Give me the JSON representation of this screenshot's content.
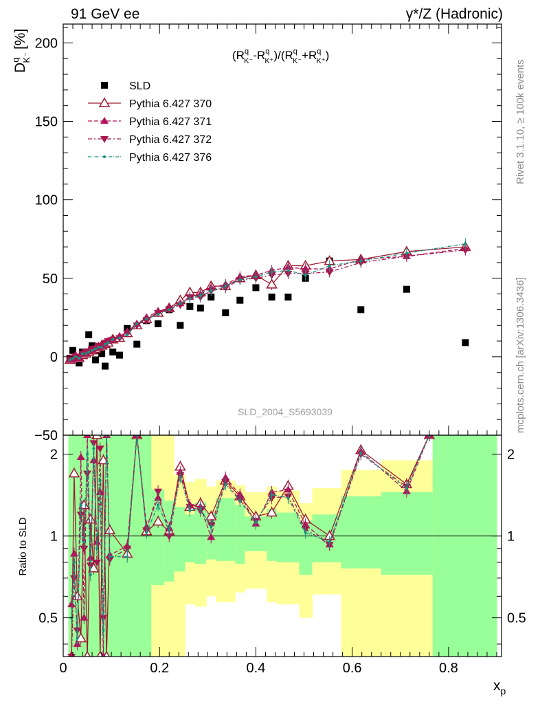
{
  "header": {
    "left": "91 GeV ee",
    "right": "γ*/Z (Hadronic)"
  },
  "side_labels": {
    "rivet": "Rivet 3.1.10, ≥ 100k events",
    "mcplots": "mcplots.cern.ch [arXiv:1306.3436]"
  },
  "watermark": "SLD_2004_S5693039",
  "colors": {
    "data": "#000000",
    "p370": "#9b1b30",
    "p371": "#b0155e",
    "p372": "#a8184f",
    "p376": "#17937f",
    "band_green": "#99ff99",
    "band_yellow": "#ffff99"
  },
  "chart_data": [
    {
      "type": "scatter",
      "panel": "main",
      "ylabel_main": "D",
      "ylabel_sup": "q",
      "ylabel_sub": "K⁻",
      "ylabel_unit": "[%]",
      "formula": "(R^q_{K-}-R^q_{K+})/(R^q_{K-}+R^q_{K+})",
      "formula_parts": {
        "R": "R",
        "q": "q",
        "km": "K⁻",
        "kp": "K⁺",
        "open": "(",
        "minus": "-",
        "mid": ")/(",
        "plus": "+",
        "close": ")"
      },
      "xlim": [
        0,
        0.91
      ],
      "ylim": [
        -50,
        212
      ],
      "yticks": [
        -50,
        0,
        50,
        100,
        150,
        200
      ],
      "ytick_labels": [
        "−50",
        "0",
        "50",
        "100",
        "150",
        "200"
      ],
      "legend_position": "top-left",
      "series": [
        {
          "name": "SLD",
          "key": "sld",
          "style": "data",
          "x": [
            0.014,
            0.02,
            0.026,
            0.033,
            0.04,
            0.047,
            0.053,
            0.06,
            0.067,
            0.073,
            0.08,
            0.087,
            0.093,
            0.103,
            0.117,
            0.133,
            0.153,
            0.173,
            0.197,
            0.22,
            0.243,
            0.263,
            0.285,
            0.307,
            0.337,
            0.367,
            0.4,
            0.433,
            0.467,
            0.503,
            0.553,
            0.618,
            0.713,
            0.835
          ],
          "y": [
            -1,
            4,
            -1,
            -4,
            3,
            2,
            14,
            7,
            -2,
            4,
            2,
            -6,
            9,
            3,
            1,
            18,
            8,
            23,
            21,
            30,
            20,
            32,
            31,
            38,
            28,
            36,
            44,
            38,
            38,
            50,
            61,
            30,
            43,
            9
          ]
        },
        {
          "name": "Pythia 6.427 370",
          "key": "p370",
          "style": "open-up",
          "x": [
            0.014,
            0.02,
            0.026,
            0.033,
            0.04,
            0.047,
            0.053,
            0.06,
            0.067,
            0.073,
            0.08,
            0.087,
            0.093,
            0.103,
            0.117,
            0.133,
            0.153,
            0.173,
            0.197,
            0.22,
            0.243,
            0.263,
            0.285,
            0.307,
            0.337,
            0.367,
            0.4,
            0.433,
            0.467,
            0.503,
            0.553,
            0.618,
            0.713,
            0.835
          ],
          "y": [
            -2,
            -1,
            0,
            -1,
            1,
            2,
            3,
            4,
            5,
            6,
            7,
            8,
            9,
            11,
            12,
            15,
            20,
            24,
            28,
            31,
            36,
            41,
            41,
            45,
            45,
            50,
            52,
            46,
            58,
            58,
            61,
            62,
            67,
            70
          ]
        },
        {
          "name": "Pythia 6.427 371",
          "key": "p371",
          "style": "filled-up",
          "x": [
            0.014,
            0.02,
            0.026,
            0.033,
            0.04,
            0.047,
            0.053,
            0.06,
            0.067,
            0.073,
            0.08,
            0.087,
            0.093,
            0.103,
            0.117,
            0.133,
            0.153,
            0.173,
            0.197,
            0.22,
            0.243,
            0.263,
            0.285,
            0.307,
            0.337,
            0.367,
            0.4,
            0.433,
            0.467,
            0.503,
            0.553,
            0.618,
            0.713,
            0.835
          ],
          "y": [
            -2,
            -2,
            1,
            -1,
            2,
            2,
            4,
            4,
            6,
            6,
            7,
            8,
            10,
            11,
            13,
            16,
            21,
            25,
            29,
            31,
            34,
            38,
            40,
            44,
            46,
            51,
            52,
            55,
            57,
            56,
            56,
            62,
            64,
            69
          ]
        },
        {
          "name": "Pythia 6.427 372",
          "key": "p372",
          "style": "filled-down",
          "x": [
            0.014,
            0.02,
            0.026,
            0.033,
            0.04,
            0.047,
            0.053,
            0.06,
            0.067,
            0.073,
            0.08,
            0.087,
            0.093,
            0.103,
            0.117,
            0.133,
            0.153,
            0.173,
            0.197,
            0.22,
            0.243,
            0.263,
            0.285,
            0.307,
            0.337,
            0.367,
            0.4,
            0.433,
            0.467,
            0.503,
            0.553,
            0.618,
            0.713,
            0.835
          ],
          "y": [
            -1,
            -1,
            0,
            0,
            2,
            3,
            3,
            5,
            5,
            7,
            7,
            9,
            10,
            11,
            12,
            15,
            20,
            23,
            28,
            30,
            33,
            38,
            38,
            42,
            44,
            49,
            50,
            52,
            53,
            53,
            54,
            60,
            64,
            68
          ]
        },
        {
          "name": "Pythia 6.427 376",
          "key": "p376",
          "style": "dot",
          "x": [
            0.014,
            0.02,
            0.026,
            0.033,
            0.04,
            0.047,
            0.053,
            0.06,
            0.067,
            0.073,
            0.08,
            0.087,
            0.093,
            0.103,
            0.117,
            0.133,
            0.153,
            0.173,
            0.197,
            0.22,
            0.243,
            0.263,
            0.285,
            0.307,
            0.337,
            0.367,
            0.4,
            0.433,
            0.467,
            0.503,
            0.553,
            0.618,
            0.713,
            0.835
          ],
          "y": [
            -2,
            -1,
            0,
            -1,
            2,
            2,
            3,
            4,
            5,
            6,
            6,
            8,
            9,
            11,
            12,
            14,
            21,
            24,
            27,
            30,
            34,
            37,
            39,
            42,
            45,
            49,
            51,
            54,
            55,
            52,
            58,
            61,
            66,
            72
          ]
        }
      ]
    },
    {
      "type": "line",
      "panel": "ratio",
      "ylabel": "Ratio to SLD",
      "xlabel": "x",
      "xlabel_sub": "p",
      "xlim": [
        0,
        0.91
      ],
      "ylim": [
        0.36,
        2.35
      ],
      "log_y": true,
      "yticks": [
        0.5,
        1,
        2
      ],
      "ytick_labels": [
        "0.5",
        "1",
        "2"
      ],
      "xticks": [
        0,
        0.2,
        0.4,
        0.6,
        0.8
      ],
      "xtick_labels": [
        "0",
        "0.2",
        "0.4",
        "0.6",
        "0.8"
      ],
      "bands": {
        "edges": [
          0.0107,
          0.0173,
          0.0227,
          0.0293,
          0.0367,
          0.0433,
          0.05,
          0.0567,
          0.0633,
          0.07,
          0.0767,
          0.0833,
          0.09,
          0.0967,
          0.11,
          0.123,
          0.143,
          0.163,
          0.183,
          0.21,
          0.23,
          0.253,
          0.273,
          0.297,
          0.317,
          0.357,
          0.377,
          0.423,
          0.443,
          0.49,
          0.517,
          0.577,
          0.66,
          0.767,
          0.9
        ],
        "green_hi": [
          2.35,
          2.35,
          2.35,
          2.35,
          2.35,
          2.35,
          2.35,
          2.35,
          2.35,
          2.35,
          2.35,
          2.35,
          2.35,
          2.35,
          2.35,
          2.35,
          2.35,
          2.35,
          1.48,
          1.35,
          1.28,
          1.2,
          1.33,
          1.22,
          1.38,
          1.3,
          1.18,
          1.26,
          1.22,
          1.14,
          1.2,
          1.4,
          1.45,
          2.35
        ],
        "green_lo": [
          0.36,
          0.36,
          0.36,
          0.36,
          0.36,
          0.36,
          0.36,
          0.36,
          0.36,
          0.36,
          0.36,
          0.36,
          0.36,
          0.36,
          0.36,
          0.36,
          0.36,
          0.36,
          0.66,
          0.68,
          0.74,
          0.8,
          0.79,
          0.82,
          0.81,
          0.79,
          0.88,
          0.81,
          0.8,
          0.72,
          0.8,
          0.76,
          0.72,
          0.36
        ],
        "yellow_hi": [
          2.35,
          2.35,
          2.35,
          2.35,
          2.35,
          2.35,
          2.35,
          2.35,
          2.35,
          2.35,
          2.35,
          2.35,
          2.35,
          2.35,
          2.35,
          2.35,
          2.35,
          2.35,
          2.35,
          2.35,
          1.68,
          1.58,
          1.62,
          1.52,
          1.6,
          1.54,
          1.45,
          1.52,
          1.47,
          1.32,
          1.5,
          1.75,
          1.9,
          2.35
        ],
        "yellow_lo": [
          0.36,
          0.36,
          0.36,
          0.36,
          0.36,
          0.36,
          0.36,
          0.36,
          0.36,
          0.36,
          0.36,
          0.36,
          0.36,
          0.36,
          0.36,
          0.36,
          0.36,
          0.36,
          0.36,
          0.36,
          0.36,
          0.56,
          0.55,
          0.6,
          0.57,
          0.62,
          0.64,
          0.57,
          0.56,
          0.5,
          0.61,
          0.36,
          0.36,
          0.36
        ]
      },
      "series": [
        {
          "key": "p370",
          "style": "open-up",
          "x": [
            0.0173,
            0.0227,
            0.0293,
            0.0367,
            0.0433,
            0.05,
            0.0567,
            0.0633,
            0.07,
            0.0767,
            0.0833,
            0.09,
            0.0967,
            0.133,
            0.153,
            0.173,
            0.197,
            0.22,
            0.243,
            0.263,
            0.285,
            0.307,
            0.337,
            0.367,
            0.4,
            0.433,
            0.467,
            0.503,
            0.553,
            0.618,
            0.713,
            0.76
          ],
          "y": [
            0.36,
            1.7,
            0.6,
            0.42,
            1.3,
            0.36,
            1.15,
            0.76,
            2.35,
            0.36,
            1.9,
            0.36,
            1.05,
            0.86,
            2.35,
            1.04,
            1.13,
            1.04,
            1.8,
            1.28,
            1.32,
            1.18,
            1.6,
            1.4,
            1.18,
            1.22,
            1.53,
            1.15,
            1.0,
            2.07,
            1.55,
            2.35
          ]
        },
        {
          "key": "p371",
          "style": "filled-up",
          "x": [
            0.0173,
            0.0227,
            0.0293,
            0.0367,
            0.0433,
            0.05,
            0.0567,
            0.0633,
            0.07,
            0.0767,
            0.0833,
            0.09,
            0.0967,
            0.133,
            0.153,
            0.173,
            0.197,
            0.22,
            0.243,
            0.263,
            0.285,
            0.307,
            0.337,
            0.367,
            0.4,
            0.433,
            0.467,
            0.503,
            0.553,
            0.618,
            0.713,
            0.76
          ],
          "y": [
            0.56,
            0.86,
            0.4,
            1.95,
            0.5,
            2.35,
            0.83,
            1.9,
            0.95,
            1.45,
            0.36,
            2.35,
            0.85,
            0.92,
            2.35,
            1.08,
            1.38,
            1.07,
            1.72,
            1.3,
            1.28,
            0.99,
            1.64,
            1.42,
            1.11,
            1.45,
            1.48,
            1.1,
            0.93,
            2.05,
            1.46,
            2.35
          ]
        },
        {
          "key": "p372",
          "style": "filled-down",
          "x": [
            0.0173,
            0.0227,
            0.0293,
            0.0367,
            0.0433,
            0.05,
            0.0567,
            0.0633,
            0.07,
            0.0767,
            0.0833,
            0.09,
            0.0967,
            0.133,
            0.153,
            0.173,
            0.197,
            0.22,
            0.243,
            0.263,
            0.285,
            0.307,
            0.337,
            0.367,
            0.4,
            0.433,
            0.467,
            0.503,
            0.553,
            0.618,
            0.713,
            0.76
          ],
          "y": [
            0.36,
            0.7,
            0.45,
            1.2,
            0.9,
            1.7,
            0.78,
            2.2,
            0.8,
            2.1,
            0.5,
            2.35,
            0.82,
            0.9,
            2.35,
            1.05,
            1.46,
            1.0,
            1.68,
            1.28,
            1.24,
            1.1,
            1.58,
            1.36,
            1.14,
            1.38,
            1.4,
            1.06,
            0.93,
            2.0,
            1.52,
            2.35
          ]
        },
        {
          "key": "p376",
          "style": "dot",
          "x": [
            0.0173,
            0.0227,
            0.0293,
            0.0367,
            0.0433,
            0.05,
            0.0567,
            0.0633,
            0.07,
            0.0767,
            0.0833,
            0.09,
            0.0967,
            0.133,
            0.153,
            0.173,
            0.197,
            0.22,
            0.243,
            0.263,
            0.285,
            0.307,
            0.337,
            0.367,
            0.4,
            0.433,
            0.467,
            0.503,
            0.553,
            0.618,
            0.713,
            0.76
          ],
          "y": [
            0.5,
            0.8,
            0.42,
            1.3,
            0.95,
            2.0,
            0.72,
            2.1,
            0.9,
            1.6,
            0.45,
            2.35,
            0.84,
            0.84,
            2.35,
            1.03,
            1.3,
            1.05,
            1.65,
            1.24,
            1.26,
            1.08,
            1.55,
            1.35,
            1.12,
            1.42,
            1.38,
            1.03,
            0.95,
            2.02,
            1.5,
            2.35
          ]
        }
      ]
    }
  ]
}
